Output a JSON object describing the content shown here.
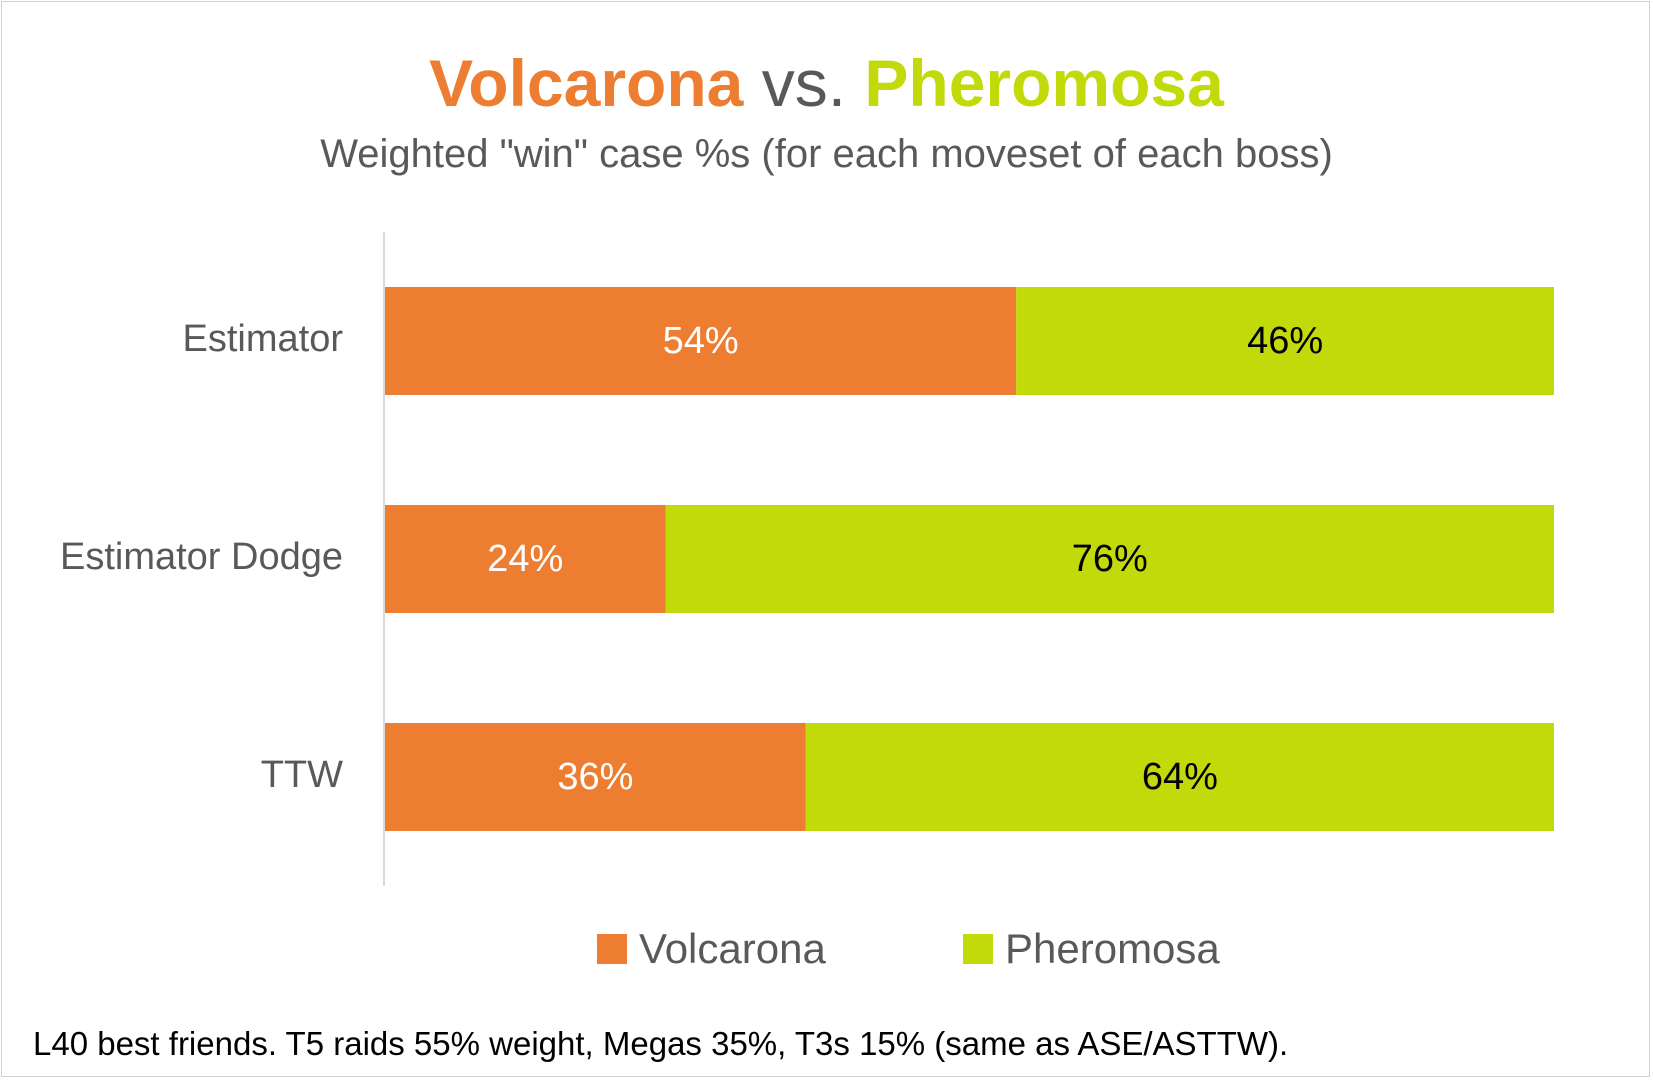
{
  "chart_data": {
    "type": "bar",
    "orientation": "horizontal",
    "stacked": true,
    "title_parts": {
      "series1": "Volcarona",
      "separator": "vs.",
      "series2": "Pheromosa"
    },
    "subtitle": "Weighted \"win\" case %s (for each moveset of each boss)",
    "categories": [
      "Estimator",
      "Estimator Dodge",
      "TTW"
    ],
    "series": [
      {
        "name": "Volcarona",
        "color": "#ed7d31",
        "label_color": "#ffffff",
        "values": [
          54,
          24,
          36
        ],
        "labels": [
          "54%",
          "24%",
          "36%"
        ]
      },
      {
        "name": "Pheromosa",
        "color": "#c2da09",
        "label_color": "#000000",
        "values": [
          46,
          76,
          64
        ],
        "labels": [
          "46%",
          "76%",
          "64%"
        ]
      }
    ],
    "xlim": [
      0,
      100
    ],
    "grid": false,
    "legend_position": "bottom",
    "footnote": "L40 best friends. T5 raids 55% weight, Megas 35%, T3s 15% (same as ASE/ASTTW)."
  }
}
